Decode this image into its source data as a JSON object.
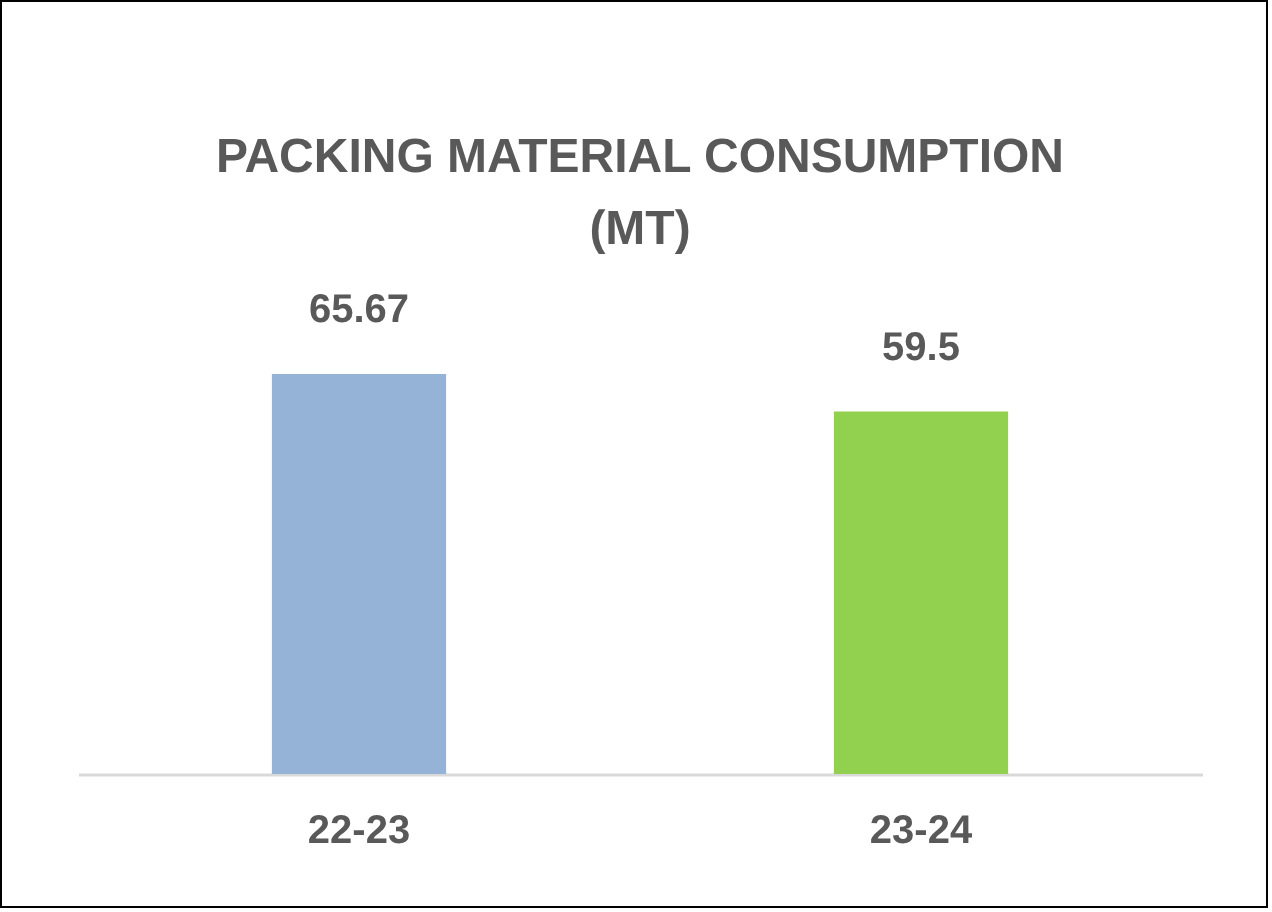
{
  "chart_data": {
    "type": "bar",
    "title": "PACKING MATERIAL CONSUMPTION (MT)",
    "categories": [
      "22-23",
      "23-24"
    ],
    "values": [
      65.67,
      59.5
    ],
    "colors": [
      "#95b3d7",
      "#92d050"
    ],
    "data_labels": true,
    "tick_labels": "x"
  }
}
